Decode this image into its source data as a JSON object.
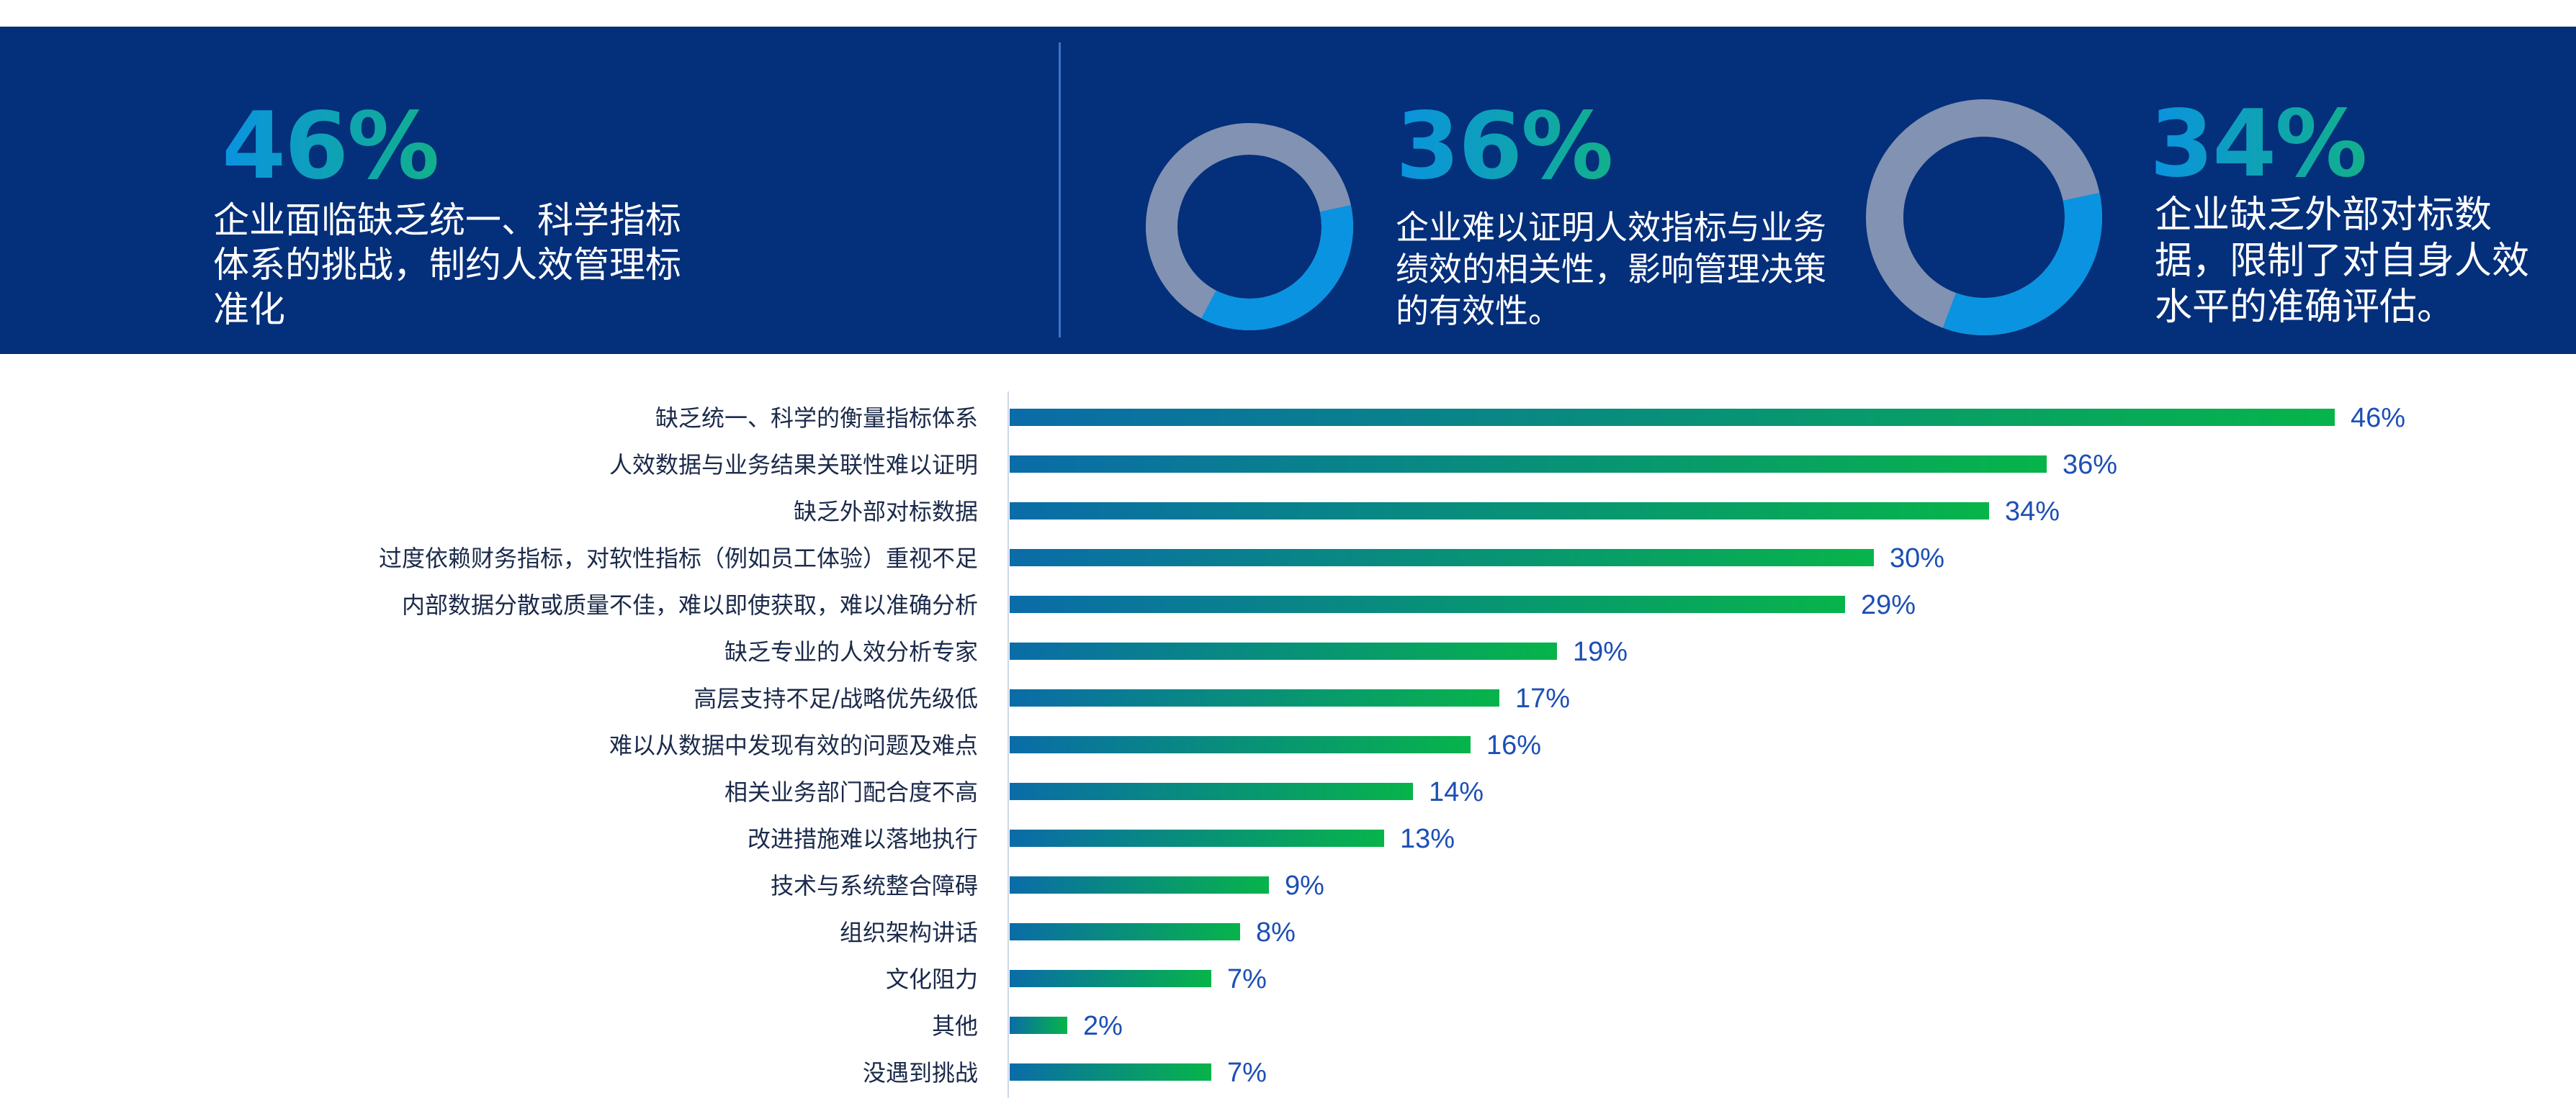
{
  "header": {
    "stats": [
      {
        "value": "46%",
        "text": "企业面临缺乏统一、科学指标体系的挑战，制约人效管理标准化"
      },
      {
        "value": "36%",
        "text": "企业难以证明人效指标与业务绩效的相关性，影响管理决策的有效性。",
        "donut_fraction": 0.36
      },
      {
        "value": "34%",
        "text": "企业缺乏外部对标数据，限制了对自身人效水平的准确评估。",
        "donut_fraction": 0.34
      }
    ],
    "donut_colors": {
      "fill": "#0a93e0",
      "track": "#8292b2"
    }
  },
  "chart_data": {
    "type": "bar",
    "orientation": "horizontal",
    "categories": [
      "缺乏统一、科学的衡量指标体系",
      "人效数据与业务结果关联性难以证明",
      "缺乏外部对标数据",
      "过度依赖财务指标，对软性指标（例如员工体验）重视不足",
      "内部数据分散或质量不佳，难以即使获取，难以准确分析",
      "缺乏专业的人效分析专家",
      "高层支持不足/战略优先级低",
      "难以从数据中发现有效的问题及难点",
      "相关业务部门配合度不高",
      "改进措施难以落地执行",
      "技术与系统整合障碍",
      "组织架构讲话",
      "文化阻力",
      "其他",
      "没遇到挑战"
    ],
    "values": [
      46,
      36,
      34,
      30,
      29,
      19,
      17,
      16,
      14,
      13,
      9,
      8,
      7,
      2,
      7
    ],
    "value_labels": [
      "46%",
      "36%",
      "34%",
      "30%",
      "29%",
      "19%",
      "17%",
      "16%",
      "14%",
      "13%",
      "9%",
      "8%",
      "7%",
      "2%",
      "7%"
    ],
    "unit": "%",
    "xlim": [
      0,
      50
    ],
    "colors": {
      "bar_start": "#0a6ca8",
      "bar_end": "#07b44a",
      "value_label": "#1c4fb5",
      "category_label": "#1b2a4a"
    }
  }
}
